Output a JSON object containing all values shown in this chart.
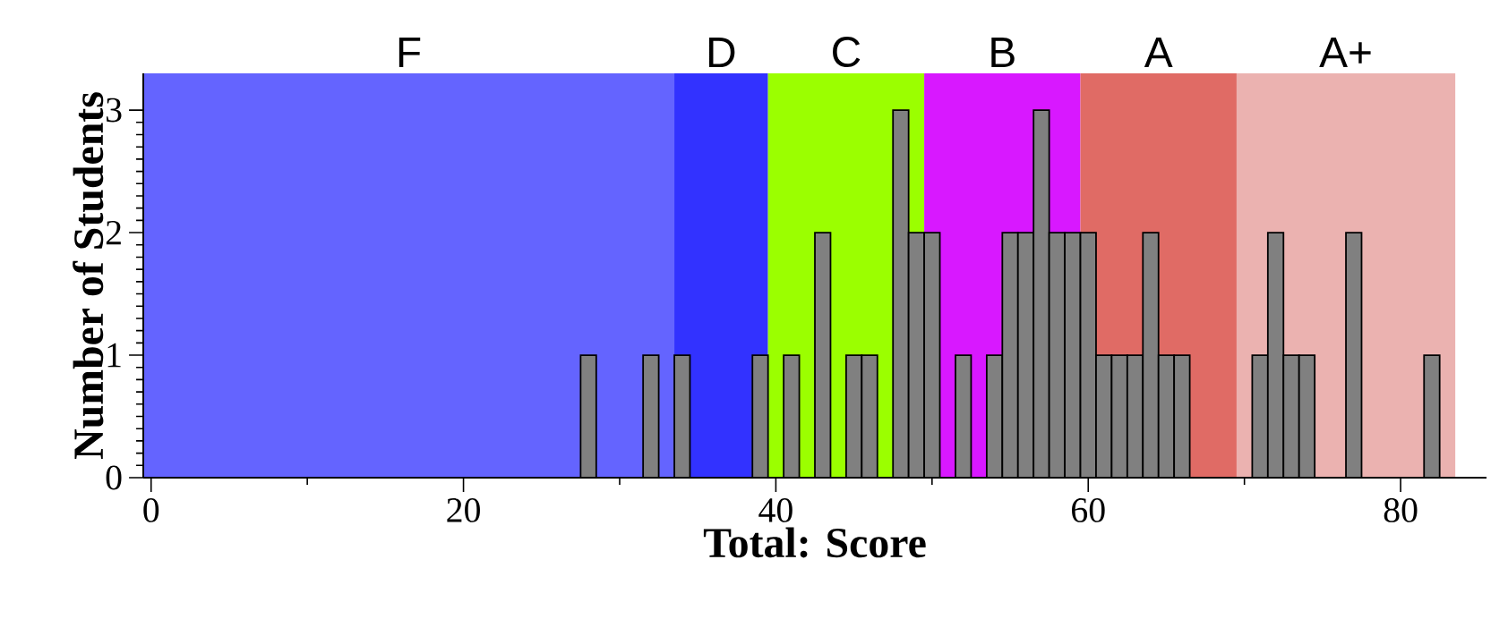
{
  "chart_data": {
    "type": "histogram",
    "xlabel": "Total: Score",
    "ylabel": "Number of Students",
    "bins": [
      27.5,
      28.5,
      29.5,
      30.5,
      31.5,
      32.5,
      33.5,
      34.5,
      35.5,
      36.5,
      37.5,
      38.5,
      39.5,
      40.5,
      41.5,
      42.5,
      43.5,
      44.5,
      45.5,
      46.5,
      47.5,
      48.5,
      49.5,
      50.5,
      51.5,
      52.5,
      53.5,
      54.5,
      55.5,
      56.5,
      57.5,
      58.5,
      59.5,
      60.5,
      61.5,
      62.5,
      63.5,
      64.5,
      65.5,
      66.5,
      67.5,
      68.5,
      69.5,
      70.5,
      71.5,
      72.5,
      73.5,
      74.5,
      75.5,
      76.5,
      77.5,
      78.5,
      79.5,
      80.5,
      81.5,
      82.5
    ],
    "values": [
      1,
      0,
      0,
      0,
      1,
      0,
      1,
      0,
      0,
      0,
      0,
      1,
      0,
      1,
      0,
      2,
      0,
      1,
      1,
      0,
      3,
      2,
      2,
      0,
      1,
      0,
      1,
      2,
      2,
      3,
      2,
      2,
      2,
      1,
      1,
      1,
      2,
      1,
      1,
      0,
      0,
      0,
      0,
      1,
      2,
      1,
      1,
      0,
      0,
      2,
      0,
      0,
      0,
      0,
      1
    ],
    "color": "#808080",
    "xlim": [
      -0.5,
      85.5
    ],
    "ylim": [
      0,
      3.3
    ],
    "xticks": [
      0,
      20,
      40,
      60,
      80
    ],
    "yticks": [
      0,
      1,
      2,
      3
    ],
    "bands": [
      {
        "axis": "x",
        "from": -0.5,
        "to": 33.5,
        "label": "F",
        "color": "#6464ff"
      },
      {
        "axis": "x",
        "from": 33.5,
        "to": 39.5,
        "label": "D",
        "color": "#3232ff"
      },
      {
        "axis": "x",
        "from": 39.5,
        "to": 49.5,
        "label": "C",
        "color": "#9bff00"
      },
      {
        "axis": "x",
        "from": 49.5,
        "to": 59.5,
        "label": "B",
        "color": "#d818ff"
      },
      {
        "axis": "x",
        "from": 59.5,
        "to": 69.5,
        "label": "A",
        "color": "#e06b65"
      },
      {
        "axis": "x",
        "from": 69.5,
        "to": 83.5,
        "label": "A+",
        "color": "#ebb2b0"
      }
    ],
    "grid": false
  }
}
